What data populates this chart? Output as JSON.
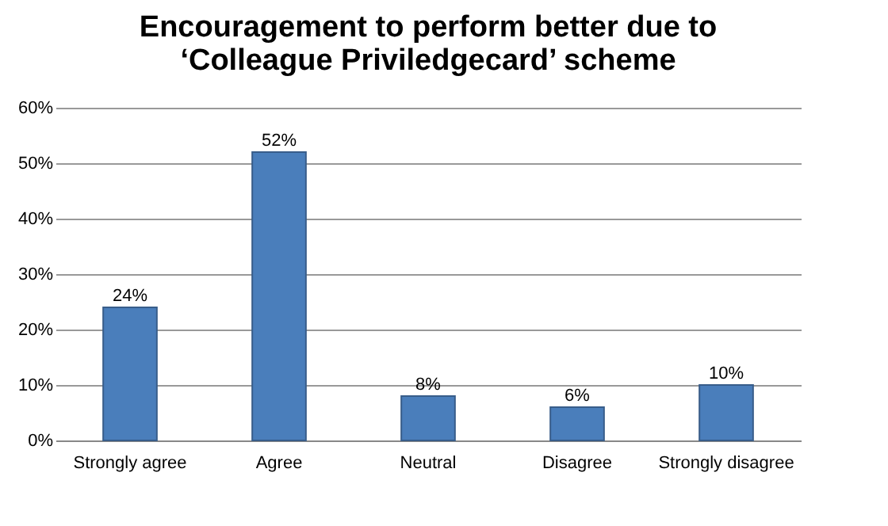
{
  "chart_data": {
    "type": "bar",
    "title": "Encouragement to perform better due to\n‘Colleague Priviledgecard’ scheme",
    "categories": [
      "Strongly agree",
      "Agree",
      "Neutral",
      "Disagree",
      "Strongly disagree"
    ],
    "values": [
      24,
      52,
      8,
      6,
      10
    ],
    "value_labels": [
      "24%",
      "52%",
      "8%",
      "6%",
      "10%"
    ],
    "color": "#4a7ebb",
    "ylim": [
      0,
      60
    ],
    "yticks": [
      {
        "value": 0,
        "label": "0%"
      },
      {
        "value": 10,
        "label": "10%"
      },
      {
        "value": 20,
        "label": "20%"
      },
      {
        "value": 30,
        "label": "30%"
      },
      {
        "value": 40,
        "label": "40%"
      },
      {
        "value": 50,
        "label": "50%"
      },
      {
        "value": 60,
        "label": "60%"
      }
    ],
    "grid": true
  }
}
